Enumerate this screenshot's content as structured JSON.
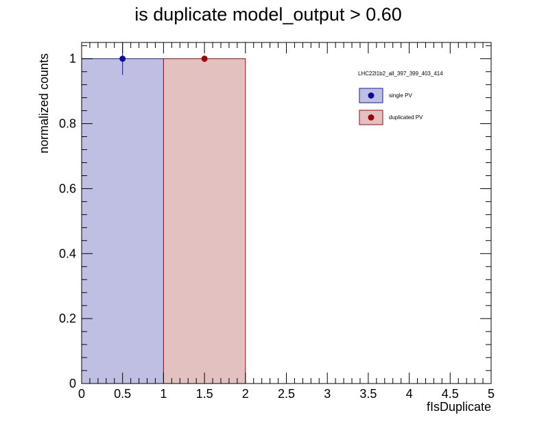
{
  "chart_data": {
    "type": "bar",
    "title": "is duplicate  model_output > 0.60",
    "xlabel": "fIsDuplicate",
    "ylabel": "normalized counts",
    "xlim": [
      0,
      5
    ],
    "ylim": [
      0,
      1.05
    ],
    "x_ticks": [
      "0",
      "0.5",
      "1",
      "1.5",
      "2",
      "2.5",
      "3",
      "3.5",
      "4",
      "4.5",
      "5"
    ],
    "y_ticks": [
      "0",
      "0.2",
      "0.4",
      "0.6",
      "0.8",
      "1"
    ],
    "legend_title": "LHC22l1b2_all_397_399_403_414",
    "legend_position": "top-right",
    "grid": false,
    "series": [
      {
        "name": "single PV",
        "bins": [
          [
            0,
            1
          ]
        ],
        "values": [
          1.0
        ],
        "points": [
          {
            "x": 0.5,
            "y": 1.0,
            "err": 0.05
          }
        ],
        "fill_color": "#bfbfe3",
        "line_color": "#1a1aa6",
        "marker_color": "#0a0aa0"
      },
      {
        "name": "duplicated PV",
        "bins": [
          [
            1,
            2
          ]
        ],
        "values": [
          1.0
        ],
        "points": [
          {
            "x": 1.5,
            "y": 1.0,
            "err": 0.01
          }
        ],
        "fill_color": "#e3c1c1",
        "line_color": "#b00000",
        "marker_color": "#a00000"
      }
    ]
  }
}
